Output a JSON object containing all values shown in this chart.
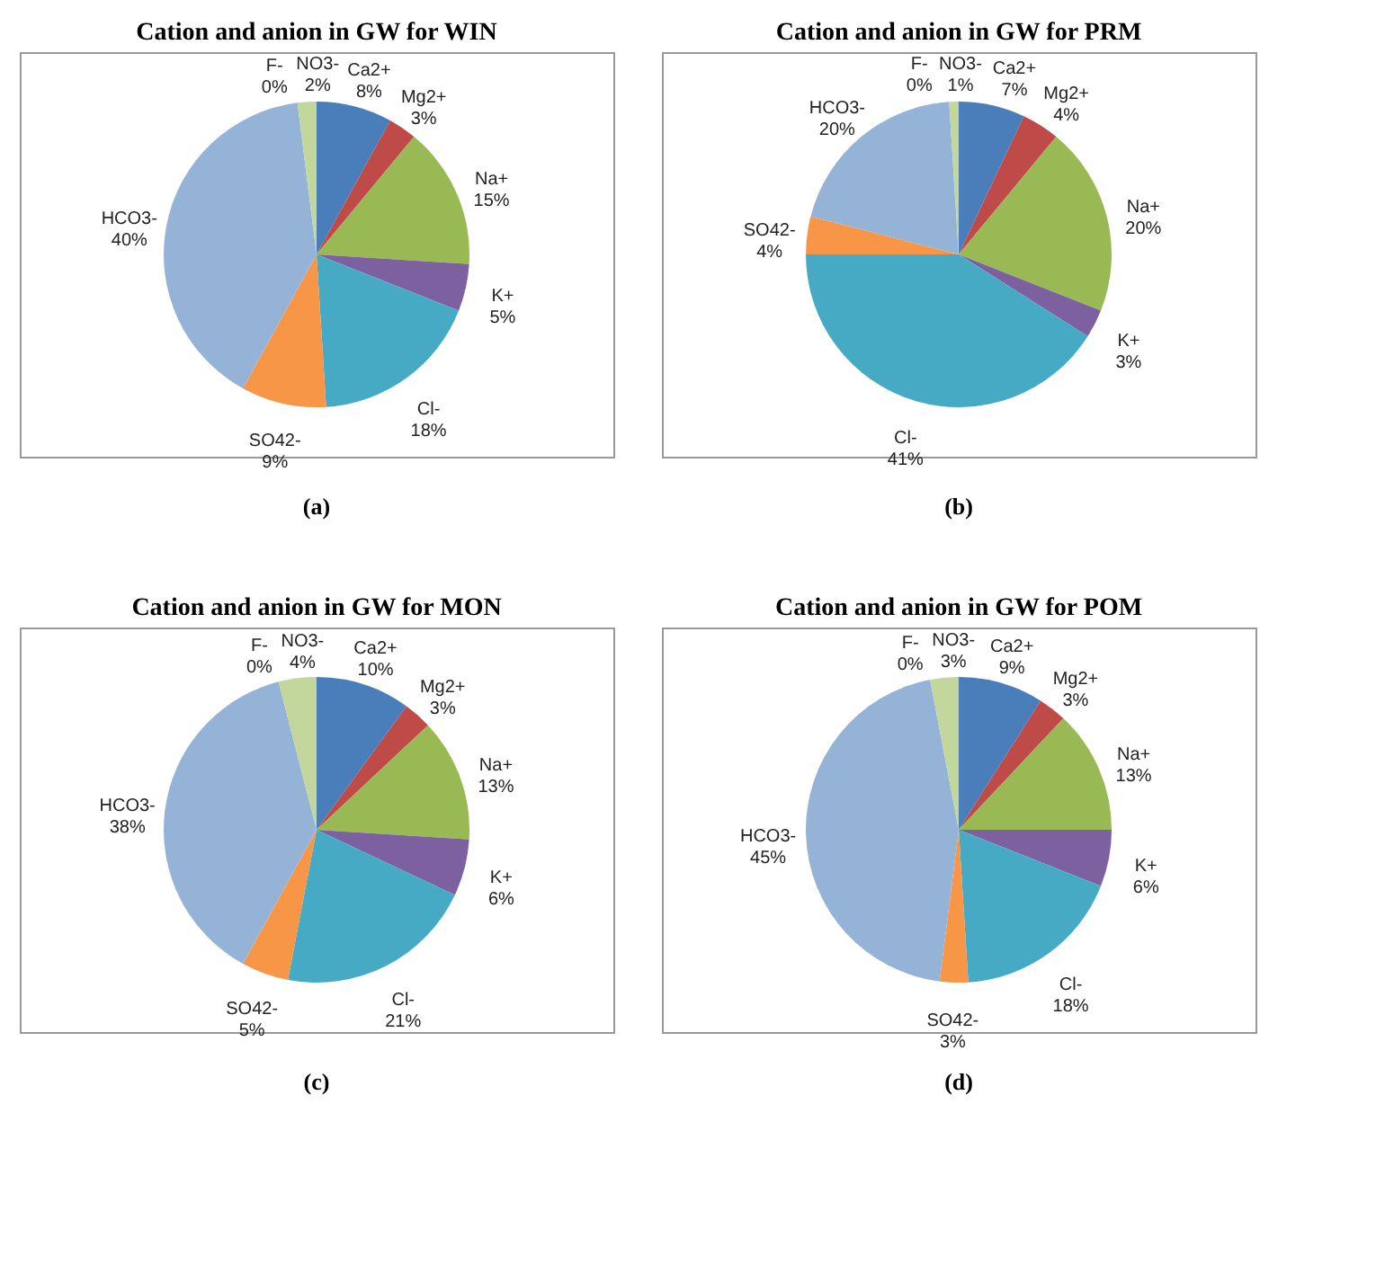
{
  "chart_data": [
    {
      "type": "pie",
      "title": "Cation and anion in GW for WIN",
      "categories": [
        "Ca2+",
        "Mg2+",
        "Na+",
        "K+",
        "Cl-",
        "SO42-",
        "HCO3-",
        "F-",
        "NO3-"
      ],
      "values": [
        8,
        3,
        15,
        5,
        18,
        9,
        40,
        0,
        2
      ],
      "value_labels": [
        "8%",
        "3%",
        "15%",
        "5%",
        "18%",
        "9%",
        "40%",
        "0%",
        "2%"
      ],
      "colors": [
        "#4a7ebb",
        "#be4b48",
        "#98b954",
        "#7d60a0",
        "#46aac5",
        "#f79646",
        "#95b3d7",
        "#d99694",
        "#c3d69b"
      ],
      "annotations": [
        "(a)"
      ],
      "legend": false
    },
    {
      "type": "pie",
      "title": "Cation and anion in GW for PRM",
      "categories": [
        "Ca2+",
        "Mg2+",
        "Na+",
        "K+",
        "Cl-",
        "SO42-",
        "HCO3-",
        "F-",
        "NO3-"
      ],
      "values": [
        7,
        4,
        20,
        3,
        41,
        4,
        20,
        0,
        1
      ],
      "value_labels": [
        "7%",
        "4%",
        "20%",
        "3%",
        "41%",
        "4%",
        "20%",
        "0%",
        "1%"
      ],
      "colors": [
        "#4a7ebb",
        "#be4b48",
        "#98b954",
        "#7d60a0",
        "#46aac5",
        "#f79646",
        "#95b3d7",
        "#d99694",
        "#c3d69b"
      ],
      "annotations": [
        "(b)"
      ],
      "legend": false
    },
    {
      "type": "pie",
      "title": "Cation and anion in GW for MON",
      "categories": [
        "Ca2+",
        "Mg2+",
        "Na+",
        "K+",
        "Cl-",
        "SO42-",
        "HCO3-",
        "F-",
        "NO3-"
      ],
      "values": [
        10,
        3,
        13,
        6,
        21,
        5,
        38,
        0,
        4
      ],
      "value_labels": [
        "10%",
        "3%",
        "13%",
        "6%",
        "21%",
        "5%",
        "38%",
        "0%",
        "4%"
      ],
      "colors": [
        "#4a7ebb",
        "#be4b48",
        "#98b954",
        "#7d60a0",
        "#46aac5",
        "#f79646",
        "#95b3d7",
        "#d99694",
        "#c3d69b"
      ],
      "annotations": [
        "(c)"
      ],
      "legend": false
    },
    {
      "type": "pie",
      "title": "Cation and anion in GW for POM",
      "categories": [
        "Ca2+",
        "Mg2+",
        "Na+",
        "K+",
        "Cl-",
        "SO42-",
        "HCO3-",
        "F-",
        "NO3-"
      ],
      "values": [
        9,
        3,
        13,
        6,
        18,
        3,
        45,
        0,
        3
      ],
      "value_labels": [
        "9%",
        "3%",
        "13%",
        "6%",
        "18%",
        "3%",
        "45%",
        "0%",
        "3%"
      ],
      "colors": [
        "#4a7ebb",
        "#be4b48",
        "#98b954",
        "#7d60a0",
        "#46aac5",
        "#f79646",
        "#95b3d7",
        "#d99694",
        "#c3d69b"
      ],
      "annotations": [
        "(d)"
      ],
      "legend": false
    }
  ]
}
